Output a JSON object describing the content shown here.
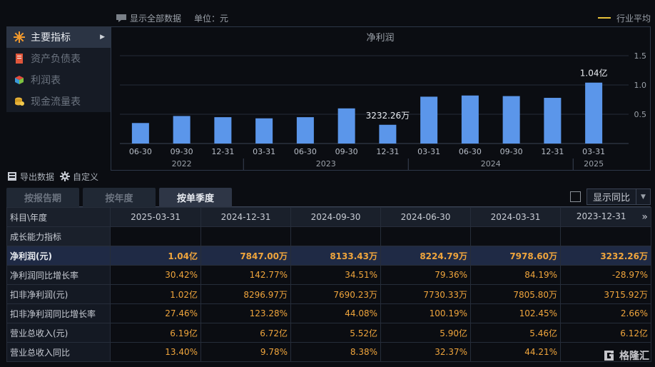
{
  "sidebar": {
    "items": [
      {
        "label": "主要指标",
        "icon": "gear-flower-icon",
        "active": true
      },
      {
        "label": "资产负债表",
        "icon": "document-icon",
        "active": false
      },
      {
        "label": "利润表",
        "icon": "cube-icon",
        "active": false
      },
      {
        "label": "现金流量表",
        "icon": "coins-icon",
        "active": false
      }
    ]
  },
  "chart_header": {
    "show_all": "显示全部数据",
    "unit": "单位：元",
    "legend": "行业平均"
  },
  "chart_data": {
    "type": "bar",
    "title": "净利润",
    "categories": [
      "06-30",
      "09-30",
      "12-31",
      "03-31",
      "06-30",
      "09-30",
      "12-31",
      "03-31",
      "06-30",
      "09-30",
      "12-31",
      "03-31"
    ],
    "years": [
      {
        "label": "2022",
        "count": 3
      },
      {
        "label": "2023",
        "count": 4
      },
      {
        "label": "2024",
        "count": 4
      },
      {
        "label": "2025",
        "count": 1
      }
    ],
    "values": [
      0.35,
      0.47,
      0.45,
      0.43,
      0.45,
      0.6,
      0.32,
      0.8,
      0.82,
      0.81,
      0.78,
      1.04
    ],
    "data_labels": [
      {
        "index": 6,
        "text": "3232.26万"
      },
      {
        "index": 11,
        "text": "1.04亿"
      }
    ],
    "yticks": [
      "0.5",
      "1.0",
      "1.5"
    ],
    "ytick_values": [
      0.5,
      1.0,
      1.5
    ],
    "ylim": [
      0,
      1.5
    ],
    "bar_color": "#5b96ea"
  },
  "tools": {
    "export": "导出数据",
    "custom": "自定义"
  },
  "tabs": [
    {
      "label": "按报告期",
      "active": false
    },
    {
      "label": "按年度",
      "active": false
    },
    {
      "label": "按单季度",
      "active": true
    }
  ],
  "yoy_select": "显示同比",
  "table": {
    "corner": "科目\\年度",
    "columns": [
      "2025-03-31",
      "2024-12-31",
      "2024-09-30",
      "2024-06-30",
      "2024-03-31",
      "2023-12-31"
    ],
    "section": "成长能力指标",
    "rows": [
      {
        "label": "净利润(元)",
        "values": [
          "1.04亿",
          "7847.00万",
          "8133.43万",
          "8224.79万",
          "7978.60万",
          "3232.26万"
        ],
        "highlight": true
      },
      {
        "label": "净利润同比增长率",
        "values": [
          "30.42%",
          "142.77%",
          "34.51%",
          "79.36%",
          "84.19%",
          "-28.97%"
        ],
        "highlight": false
      },
      {
        "label": "扣非净利润(元)",
        "values": [
          "1.02亿",
          "8296.97万",
          "7690.23万",
          "7730.33万",
          "7805.80万",
          "3715.92万"
        ],
        "highlight": false
      },
      {
        "label": "扣非净利润同比增长率",
        "values": [
          "27.46%",
          "123.28%",
          "44.08%",
          "100.19%",
          "102.45%",
          "2.66%"
        ],
        "highlight": false
      },
      {
        "label": "营业总收入(元)",
        "values": [
          "6.19亿",
          "6.72亿",
          "5.52亿",
          "5.90亿",
          "5.46亿",
          "6.12亿"
        ],
        "highlight": false
      },
      {
        "label": "营业总收入同比",
        "values": [
          "13.40%",
          "9.78%",
          "8.38%",
          "32.37%",
          "44.21%",
          ""
        ],
        "highlight": false
      }
    ]
  },
  "watermark": "格隆汇"
}
